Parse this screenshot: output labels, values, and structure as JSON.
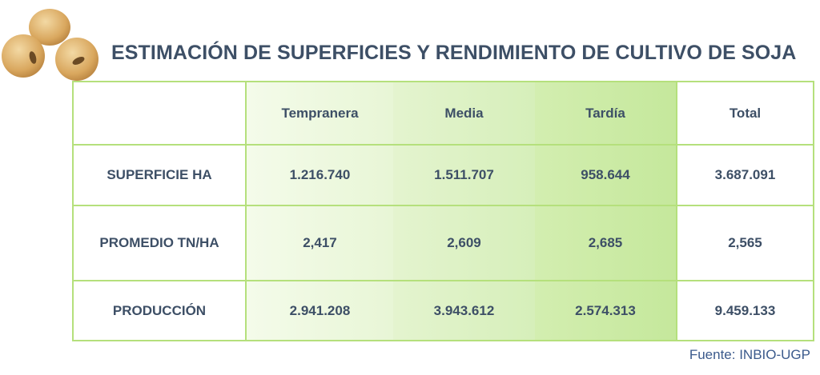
{
  "title": "ESTIMACIÓN DE SUPERFICIES Y RENDIMIENTO DE CULTIVO DE SOJA",
  "source": "Fuente: INBIO-UGP",
  "colors": {
    "title": "#3d4f66",
    "grid_line": "#b5e07c",
    "temprana_bg": "#eef8e0",
    "media_bg": "#dff2c8",
    "tardia_bg": "#cdeca8",
    "source": "#3b5a8c"
  },
  "chart_data": {
    "type": "table",
    "title": "ESTIMACIÓN DE SUPERFICIES Y RENDIMIENTO DE CULTIVO DE SOJA",
    "columns": [
      "",
      "Tempranera",
      "Media",
      "Tardía",
      "Total"
    ],
    "rows": [
      {
        "label": "SUPERFICIE HA",
        "values": [
          "1.216.740",
          "1.511.707",
          "958.644",
          "3.687.091"
        ]
      },
      {
        "label": "PROMEDIO TN/HA",
        "values": [
          "2,417",
          "2,609",
          "2,685",
          "2,565"
        ]
      },
      {
        "label": "PRODUCCIÓN",
        "values": [
          "2.941.208",
          "3.943.612",
          "2.574.313",
          "9.459.133"
        ]
      }
    ]
  }
}
